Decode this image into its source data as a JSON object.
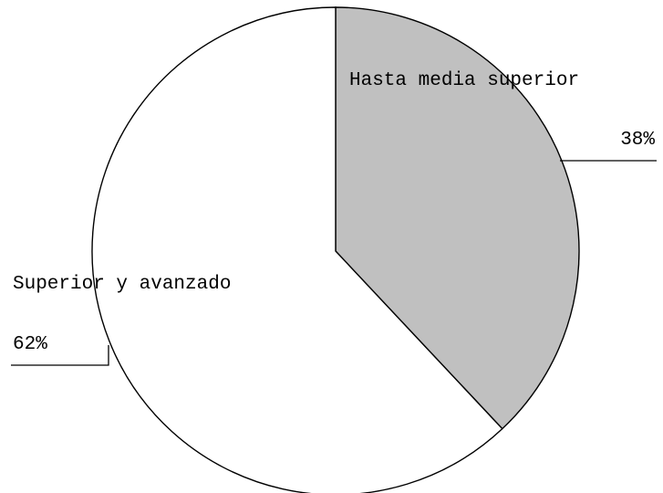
{
  "chart_data": {
    "type": "pie",
    "title": "",
    "categories": [
      "Hasta media superior",
      "Superior y avanzado"
    ],
    "values": [
      38,
      62
    ],
    "value_labels": [
      "38%",
      "62%"
    ],
    "colors": [
      "#c0c0c0",
      "#ffffff"
    ],
    "start_angle": "12 o'clock",
    "direction": "clockwise",
    "legend": "none"
  }
}
